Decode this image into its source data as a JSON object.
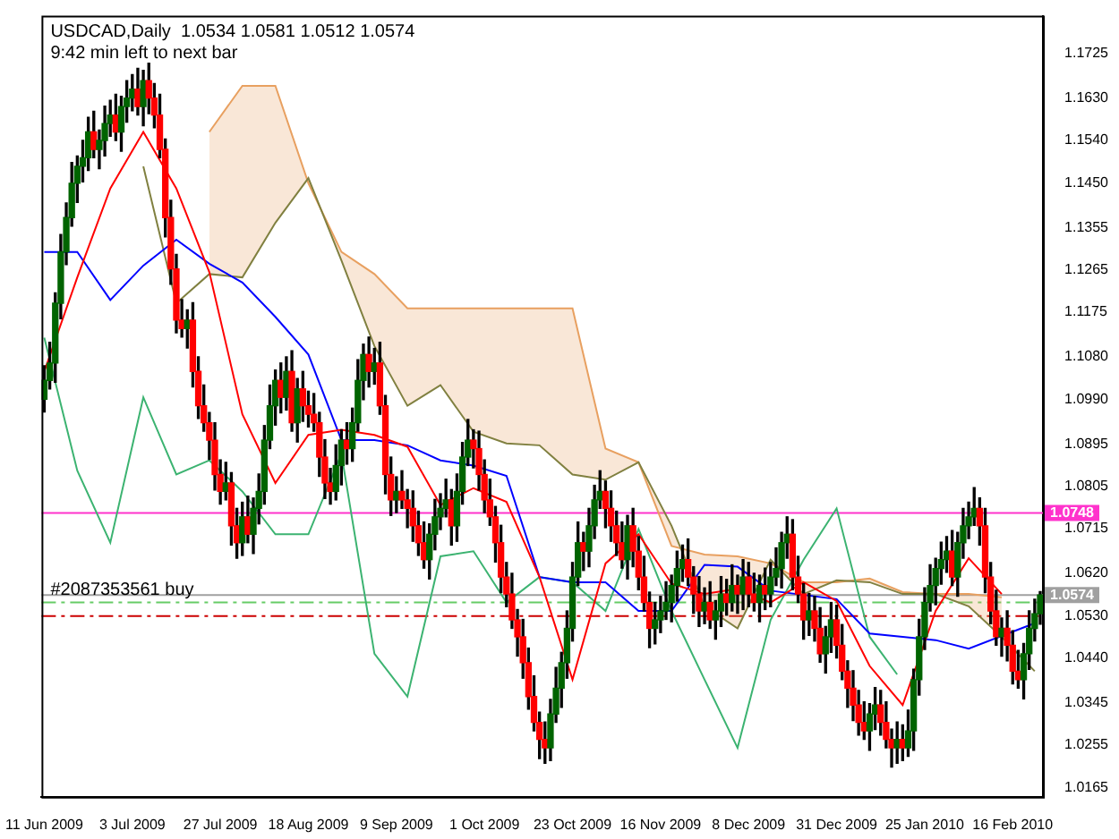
{
  "chart_data": {
    "type": "candlestick",
    "title": "USDCAD,Daily  1.0534 1.0581 1.0512 1.0574",
    "subtitle": "9:42 min left to next bar",
    "categories": [
      "11 Jun 2009",
      null,
      null,
      null,
      null,
      null,
      null,
      null,
      null,
      null,
      null,
      null,
      null,
      null,
      null,
      null,
      "3 Jul 2009",
      null,
      null,
      null,
      null,
      null,
      null,
      null,
      null,
      null,
      null,
      null,
      null,
      null,
      null,
      null,
      "27 Jul 2009",
      null,
      null,
      null,
      null,
      null,
      null,
      null,
      null,
      null,
      null,
      null,
      null,
      null,
      null,
      null,
      "18 Aug 2009",
      null,
      null,
      null,
      null,
      null,
      null,
      null,
      null,
      null,
      null,
      null,
      null,
      null,
      null,
      null,
      "9 Sep 2009",
      null,
      null,
      null,
      null,
      null,
      null,
      null,
      null,
      null,
      null,
      null,
      null,
      null,
      null,
      null,
      "1 Oct 2009",
      null,
      null,
      null,
      null,
      null,
      null,
      null,
      null,
      null,
      null,
      null,
      null,
      null,
      null,
      null,
      "23 Oct 2009",
      null,
      null,
      null,
      null,
      null,
      null,
      null,
      null,
      null,
      null,
      null,
      null,
      null,
      null,
      null,
      "16 Nov 2009",
      null,
      null,
      null,
      null,
      null,
      null,
      null,
      null,
      null,
      null,
      null,
      null,
      null,
      null,
      null,
      "8 Dec 2009",
      null,
      null,
      null,
      null,
      null,
      null,
      null,
      null,
      null,
      null,
      null,
      null,
      null,
      null,
      null,
      "31 Dec 2009",
      null,
      null,
      null,
      null,
      null,
      null,
      null,
      null,
      null,
      null,
      null,
      null,
      null,
      null,
      null,
      "25 Jan 2010",
      null,
      null,
      null,
      null,
      null,
      null,
      null,
      null,
      null,
      null,
      null,
      null,
      null,
      null,
      null,
      "16 Feb 2010",
      null,
      null,
      null,
      null,
      null
    ],
    "ohlc": [
      [
        1.099,
        1.1061,
        1.0963,
        1.103
      ],
      [
        1.103,
        1.1111,
        1.1012,
        1.1067
      ],
      [
        1.1067,
        1.1216,
        1.1026,
        1.1194
      ],
      [
        1.1194,
        1.134,
        1.1161,
        1.1303
      ],
      [
        1.1303,
        1.1407,
        1.1276,
        1.1376
      ],
      [
        1.1376,
        1.1493,
        1.1358,
        1.1449
      ],
      [
        1.1449,
        1.1507,
        1.1408,
        1.1485
      ],
      [
        1.1485,
        1.154,
        1.1452,
        1.1503
      ],
      [
        1.1503,
        1.1589,
        1.1476,
        1.1558
      ],
      [
        1.1558,
        1.1602,
        1.1503,
        1.1521
      ],
      [
        1.1521,
        1.1562,
        1.148,
        1.154
      ],
      [
        1.154,
        1.1613,
        1.1507,
        1.1576
      ],
      [
        1.1576,
        1.1625,
        1.1549,
        1.1594
      ],
      [
        1.1594,
        1.1638,
        1.154,
        1.1558
      ],
      [
        1.1558,
        1.1634,
        1.1517,
        1.1612
      ],
      [
        1.1612,
        1.1667,
        1.1579,
        1.163
      ],
      [
        1.163,
        1.168,
        1.1603,
        1.1649
      ],
      [
        1.1649,
        1.1693,
        1.1594,
        1.1612
      ],
      [
        1.1612,
        1.1689,
        1.1571,
        1.1667
      ],
      [
        1.1667,
        1.1704,
        1.1597,
        1.163
      ],
      [
        1.163,
        1.1661,
        1.1567,
        1.1594
      ],
      [
        1.1594,
        1.1638,
        1.1503,
        1.1521
      ],
      [
        1.1521,
        1.1543,
        1.1335,
        1.1376
      ],
      [
        1.1376,
        1.1413,
        1.1234,
        1.1267
      ],
      [
        1.1267,
        1.1298,
        1.1131,
        1.1158
      ],
      [
        1.1158,
        1.1202,
        1.1122,
        1.114
      ],
      [
        1.114,
        1.118,
        1.1099,
        1.1158
      ],
      [
        1.1158,
        1.1195,
        1.1016,
        1.1049
      ],
      [
        1.1049,
        1.108,
        1.0949,
        1.0976
      ],
      [
        1.0976,
        1.102,
        1.0922,
        1.094
      ],
      [
        1.094,
        1.0962,
        1.0862,
        1.0903
      ],
      [
        1.0903,
        1.094,
        1.0797,
        1.083
      ],
      [
        1.083,
        1.0861,
        1.0767,
        1.0794
      ],
      [
        1.0794,
        1.0856,
        1.0776,
        1.0812
      ],
      [
        1.0812,
        1.0834,
        1.068,
        1.0721
      ],
      [
        1.0721,
        1.0758,
        1.0652,
        1.0685
      ],
      [
        1.0685,
        1.0771,
        1.0658,
        1.074
      ],
      [
        1.074,
        1.0784,
        1.0685,
        1.0703
      ],
      [
        1.0703,
        1.078,
        1.0662,
        1.0758
      ],
      [
        1.0758,
        1.0831,
        1.0725,
        1.0794
      ],
      [
        1.0794,
        1.0934,
        1.0767,
        1.0903
      ],
      [
        1.0903,
        1.102,
        1.0885,
        1.0976
      ],
      [
        1.0976,
        1.1052,
        1.0935,
        1.103
      ],
      [
        1.103,
        1.1067,
        1.0961,
        1.0994
      ],
      [
        1.0994,
        1.108,
        1.0967,
        1.1049
      ],
      [
        1.1049,
        1.1093,
        1.0922,
        1.094
      ],
      [
        1.094,
        1.1034,
        1.0899,
        1.1012
      ],
      [
        1.1012,
        1.1049,
        1.0943,
        1.0976
      ],
      [
        1.0976,
        1.1007,
        1.0931,
        1.0958
      ],
      [
        1.0958,
        1.1002,
        1.0922,
        1.094
      ],
      [
        1.094,
        1.0962,
        1.0826,
        1.0867
      ],
      [
        1.0867,
        1.0904,
        1.0779,
        1.0812
      ],
      [
        1.0812,
        1.0843,
        1.0767,
        1.0794
      ],
      [
        1.0794,
        1.0893,
        1.0776,
        1.0849
      ],
      [
        1.0849,
        1.0925,
        1.0808,
        1.0903
      ],
      [
        1.0903,
        1.094,
        1.0852,
        1.0885
      ],
      [
        1.0885,
        1.0971,
        1.0858,
        1.094
      ],
      [
        1.094,
        1.1074,
        1.0922,
        1.103
      ],
      [
        1.103,
        1.1107,
        1.0989,
        1.1085
      ],
      [
        1.1085,
        1.1122,
        1.1016,
        1.1049
      ],
      [
        1.1049,
        1.1098,
        1.1022,
        1.1067
      ],
      [
        1.1067,
        1.1111,
        1.0958,
        1.0976
      ],
      [
        1.0976,
        1.0998,
        1.0789,
        1.083
      ],
      [
        1.083,
        1.0867,
        1.0743,
        1.0776
      ],
      [
        1.0776,
        1.0825,
        1.0749,
        1.0794
      ],
      [
        1.0794,
        1.0838,
        1.0758,
        1.0776
      ],
      [
        1.0776,
        1.0798,
        1.0717,
        1.0758
      ],
      [
        1.0758,
        1.0795,
        1.0688,
        1.0721
      ],
      [
        1.0721,
        1.0752,
        1.0658,
        1.0685
      ],
      [
        1.0685,
        1.0729,
        1.0631,
        1.0649
      ],
      [
        1.0649,
        1.0725,
        1.0608,
        1.0703
      ],
      [
        1.0703,
        1.0777,
        1.067,
        1.074
      ],
      [
        1.074,
        1.0789,
        1.0713,
        1.0758
      ],
      [
        1.0758,
        1.082,
        1.074,
        1.0776
      ],
      [
        1.0776,
        1.0798,
        1.068,
        1.0721
      ],
      [
        1.0721,
        1.0831,
        1.0688,
        1.0794
      ],
      [
        1.0794,
        1.0898,
        1.0767,
        1.0867
      ],
      [
        1.0867,
        1.0947,
        1.0849,
        1.0903
      ],
      [
        1.0903,
        1.0925,
        1.0844,
        1.0885
      ],
      [
        1.0885,
        1.0922,
        1.0797,
        1.083
      ],
      [
        1.083,
        1.0861,
        1.0749,
        1.0776
      ],
      [
        1.0776,
        1.082,
        1.0722,
        1.074
      ],
      [
        1.074,
        1.0762,
        1.0644,
        1.0685
      ],
      [
        1.0685,
        1.0722,
        1.0579,
        1.0612
      ],
      [
        1.0612,
        1.0643,
        1.0549,
        1.0576
      ],
      [
        1.0576,
        1.062,
        1.0503,
        1.0521
      ],
      [
        1.0521,
        1.0543,
        1.0444,
        1.0485
      ],
      [
        1.0485,
        1.0522,
        1.0397,
        1.043
      ],
      [
        1.043,
        1.0461,
        1.0331,
        1.0358
      ],
      [
        1.0358,
        1.0402,
        1.0285,
        1.0303
      ],
      [
        1.0303,
        1.0325,
        1.0226,
        1.0267
      ],
      [
        1.0267,
        1.0304,
        1.0216,
        1.0249
      ],
      [
        1.0249,
        1.0352,
        1.0222,
        1.0321
      ],
      [
        1.0321,
        1.042,
        1.0303,
        1.0376
      ],
      [
        1.0376,
        1.0452,
        1.0335,
        1.043
      ],
      [
        1.043,
        1.054,
        1.0397,
        1.0503
      ],
      [
        1.0503,
        1.0643,
        1.0476,
        1.0612
      ],
      [
        1.0612,
        1.0729,
        1.0594,
        1.0685
      ],
      [
        1.0685,
        1.0707,
        1.0626,
        1.0667
      ],
      [
        1.0667,
        1.0758,
        1.0634,
        1.0721
      ],
      [
        1.0721,
        1.0807,
        1.0694,
        1.0776
      ],
      [
        1.0776,
        1.0838,
        1.0758,
        1.0794
      ],
      [
        1.0794,
        1.0816,
        1.0717,
        1.0758
      ],
      [
        1.0758,
        1.0795,
        1.0688,
        1.0721
      ],
      [
        1.0721,
        1.0752,
        1.0658,
        1.0685
      ],
      [
        1.0685,
        1.0729,
        1.0631,
        1.0649
      ],
      [
        1.0649,
        1.0743,
        1.0608,
        1.0721
      ],
      [
        1.0721,
        1.0758,
        1.0634,
        1.0667
      ],
      [
        1.0667,
        1.0698,
        1.0585,
        1.0612
      ],
      [
        1.0612,
        1.0656,
        1.054,
        1.0558
      ],
      [
        1.0558,
        1.058,
        1.0462,
        1.0503
      ],
      [
        1.0503,
        1.0558,
        1.047,
        1.0521
      ],
      [
        1.0521,
        1.0571,
        1.0494,
        1.054
      ],
      [
        1.054,
        1.0602,
        1.0522,
        1.0558
      ],
      [
        1.0558,
        1.0616,
        1.0517,
        1.0594
      ],
      [
        1.0594,
        1.0667,
        1.0561,
        1.063
      ],
      [
        1.063,
        1.068,
        1.0603,
        1.0649
      ],
      [
        1.0649,
        1.0693,
        1.0594,
        1.0612
      ],
      [
        1.0612,
        1.0634,
        1.0535,
        1.0576
      ],
      [
        1.0576,
        1.0613,
        1.0507,
        1.054
      ],
      [
        1.054,
        1.0589,
        1.0513,
        1.0558
      ],
      [
        1.0558,
        1.0602,
        1.0503,
        1.0521
      ],
      [
        1.0521,
        1.0562,
        1.048,
        1.054
      ],
      [
        1.054,
        1.0613,
        1.0507,
        1.0576
      ],
      [
        1.0576,
        1.0607,
        1.0531,
        1.0558
      ],
      [
        1.0558,
        1.0638,
        1.054,
        1.0594
      ],
      [
        1.0594,
        1.0616,
        1.0535,
        1.0576
      ],
      [
        1.0576,
        1.0649,
        1.0543,
        1.0612
      ],
      [
        1.0612,
        1.0643,
        1.0549,
        1.0576
      ],
      [
        1.0576,
        1.062,
        1.054,
        1.0558
      ],
      [
        1.0558,
        1.0616,
        1.0517,
        1.0594
      ],
      [
        1.0594,
        1.0631,
        1.0543,
        1.0576
      ],
      [
        1.0576,
        1.0643,
        1.0549,
        1.0612
      ],
      [
        1.0612,
        1.0674,
        1.0594,
        1.063
      ],
      [
        1.063,
        1.0707,
        1.0589,
        1.0685
      ],
      [
        1.0685,
        1.074,
        1.0652,
        1.0703
      ],
      [
        1.0703,
        1.0734,
        1.0585,
        1.0612
      ],
      [
        1.0612,
        1.0656,
        1.0558,
        1.0576
      ],
      [
        1.0576,
        1.0598,
        1.048,
        1.0521
      ],
      [
        1.0521,
        1.0577,
        1.0488,
        1.054
      ],
      [
        1.054,
        1.0571,
        1.0476,
        1.0503
      ],
      [
        1.0503,
        1.0547,
        1.0431,
        1.0449
      ],
      [
        1.0449,
        1.0507,
        1.0408,
        1.0485
      ],
      [
        1.0485,
        1.0558,
        1.0452,
        1.0521
      ],
      [
        1.0521,
        1.0552,
        1.044,
        1.0467
      ],
      [
        1.0467,
        1.0511,
        1.0394,
        1.0412
      ],
      [
        1.0412,
        1.0434,
        1.0335,
        1.0376
      ],
      [
        1.0376,
        1.0413,
        1.0307,
        1.034
      ],
      [
        1.034,
        1.0371,
        1.0276,
        1.0303
      ],
      [
        1.0303,
        1.0347,
        1.0267,
        1.0285
      ],
      [
        1.0285,
        1.0343,
        1.0244,
        1.0321
      ],
      [
        1.0321,
        1.0377,
        1.0288,
        1.034
      ],
      [
        1.034,
        1.0371,
        1.0276,
        1.0303
      ],
      [
        1.0303,
        1.0347,
        1.0249,
        1.0267
      ],
      [
        1.0267,
        1.0289,
        1.0208,
        1.0249
      ],
      [
        1.0249,
        1.0304,
        1.0216,
        1.0267
      ],
      [
        1.0267,
        1.0298,
        1.0222,
        1.0249
      ],
      [
        1.0249,
        1.0329,
        1.0231,
        1.0285
      ],
      [
        1.0285,
        1.0416,
        1.0244,
        1.0394
      ],
      [
        1.0394,
        1.0522,
        1.0361,
        1.0485
      ],
      [
        1.0485,
        1.0589,
        1.0458,
        1.0558
      ],
      [
        1.0558,
        1.0638,
        1.054,
        1.0594
      ],
      [
        1.0594,
        1.0652,
        1.0553,
        1.063
      ],
      [
        1.063,
        1.0686,
        1.0597,
        1.0649
      ],
      [
        1.0649,
        1.0698,
        1.0622,
        1.0667
      ],
      [
        1.0667,
        1.0711,
        1.0594,
        1.0612
      ],
      [
        1.0612,
        1.0707,
        1.0571,
        1.0685
      ],
      [
        1.0685,
        1.0758,
        1.0652,
        1.0721
      ],
      [
        1.0721,
        1.0771,
        1.0694,
        1.074
      ],
      [
        1.074,
        1.0802,
        1.0722,
        1.0758
      ],
      [
        1.0758,
        1.078,
        1.068,
        1.0721
      ],
      [
        1.0721,
        1.0758,
        1.0579,
        1.0612
      ],
      [
        1.0612,
        1.0643,
        1.0513,
        1.054
      ],
      [
        1.054,
        1.0584,
        1.0467,
        1.0485
      ],
      [
        1.0485,
        1.0525,
        1.0444,
        1.0503
      ],
      [
        1.0503,
        1.054,
        1.0434,
        1.0467
      ],
      [
        1.0467,
        1.0498,
        1.0385,
        1.0412
      ],
      [
        1.0412,
        1.0456,
        1.0376,
        1.0394
      ],
      [
        1.0394,
        1.0471,
        1.0353,
        1.0449
      ],
      [
        1.0449,
        1.054,
        1.0416,
        1.0503
      ],
      [
        1.0503,
        1.0565,
        1.0476,
        1.0534
      ],
      [
        1.0534,
        1.0581,
        1.0512,
        1.0574
      ]
    ],
    "series": [
      {
        "type": "line",
        "color": "#ff0000",
        "values": [
          1.1049,
          null,
          null,
          null,
          null,
          null,
          1.1249,
          null,
          null,
          null,
          null,
          null,
          1.1438,
          null,
          null,
          null,
          null,
          null,
          1.1558,
          null,
          null,
          null,
          null,
          null,
          1.1438,
          null,
          null,
          null,
          null,
          null,
          1.126,
          null,
          null,
          null,
          null,
          null,
          1.0958,
          null,
          null,
          null,
          null,
          null,
          1.0812,
          null,
          null,
          null,
          null,
          null,
          1.0914,
          null,
          null,
          null,
          null,
          null,
          1.0925,
          null,
          null,
          null,
          null,
          null,
          1.0914,
          null,
          null,
          null,
          null,
          null,
          1.0889,
          null,
          null,
          null,
          null,
          null,
          1.0765,
          null,
          null,
          null,
          null,
          null,
          1.0801,
          null,
          null,
          null,
          null,
          null,
          1.0772,
          null,
          null,
          null,
          null,
          null,
          1.0612,
          null,
          null,
          null,
          null,
          null,
          1.0394,
          null,
          null,
          null,
          null,
          null,
          1.0641,
          null,
          null,
          null,
          null,
          null,
          1.0703,
          null,
          null,
          null,
          null,
          null,
          1.0598,
          null,
          null,
          null,
          null,
          null,
          1.0576,
          null,
          null,
          null,
          null,
          null,
          1.0587,
          null,
          null,
          null,
          null,
          null,
          1.0558,
          null,
          null,
          null,
          null,
          null,
          1.0601,
          null,
          null,
          null,
          null,
          null,
          1.0561,
          null,
          null,
          null,
          null,
          null,
          1.0423,
          null,
          null,
          null,
          null,
          null,
          1.034,
          null,
          null,
          null,
          null,
          null,
          1.054,
          null,
          null,
          null,
          null,
          null,
          1.0652,
          null,
          null,
          null,
          null,
          null,
          1.0576,
          null,
          null,
          null,
          null,
          null,
          null,
          null
        ]
      },
      {
        "type": "line",
        "color": "#0000ff",
        "values": [
          1.1303,
          null,
          null,
          null,
          null,
          null,
          1.1303,
          null,
          null,
          null,
          null,
          null,
          1.1201,
          null,
          null,
          null,
          null,
          null,
          1.1274,
          null,
          null,
          null,
          null,
          null,
          1.1329,
          null,
          null,
          null,
          null,
          null,
          1.1278,
          null,
          null,
          null,
          null,
          null,
          1.1238,
          null,
          null,
          null,
          null,
          null,
          1.1165,
          null,
          null,
          null,
          null,
          null,
          1.1085,
          null,
          null,
          null,
          null,
          null,
          1.0903,
          null,
          null,
          null,
          null,
          null,
          1.0903,
          null,
          null,
          null,
          null,
          null,
          1.0892,
          null,
          null,
          null,
          null,
          null,
          1.086,
          null,
          null,
          null,
          null,
          null,
          1.0849,
          null,
          null,
          null,
          null,
          null,
          1.0827,
          null,
          null,
          null,
          null,
          null,
          1.0612,
          null,
          null,
          null,
          null,
          null,
          1.0601,
          null,
          null,
          null,
          null,
          null,
          1.0601,
          null,
          null,
          null,
          null,
          null,
          1.054,
          null,
          null,
          null,
          null,
          null,
          1.054,
          null,
          null,
          null,
          null,
          null,
          1.0638,
          null,
          null,
          null,
          null,
          null,
          1.0634,
          null,
          null,
          null,
          null,
          null,
          1.0583,
          null,
          null,
          null,
          null,
          null,
          null,
          null,
          null,
          null,
          null,
          null,
          1.0565,
          null,
          null,
          null,
          null,
          null,
          1.0492,
          null,
          null,
          null,
          null,
          null,
          1.0485,
          null,
          null,
          null,
          null,
          null,
          1.0478,
          null,
          null,
          null,
          null,
          null,
          1.046,
          null,
          null,
          null,
          null,
          null,
          null,
          null,
          null,
          null,
          null,
          null,
          1.0514,
          null
        ]
      },
      {
        "type": "line",
        "color": "#3cb371",
        "values": [
          1.1121,
          null,
          null,
          null,
          null,
          null,
          1.0838,
          null,
          null,
          null,
          null,
          null,
          1.0685,
          null,
          null,
          null,
          null,
          null,
          1.0994,
          null,
          null,
          null,
          null,
          null,
          1.083,
          null,
          null,
          null,
          null,
          null,
          1.086,
          null,
          null,
          null,
          null,
          null,
          1.0794,
          null,
          null,
          null,
          null,
          null,
          1.0703,
          null,
          null,
          null,
          null,
          null,
          1.0703,
          null,
          null,
          null,
          null,
          null,
          1.0874,
          null,
          null,
          null,
          null,
          null,
          1.0449,
          null,
          null,
          null,
          null,
          null,
          1.0358,
          null,
          null,
          null,
          null,
          null,
          1.0656,
          null,
          null,
          null,
          null,
          null,
          1.0667,
          null,
          null,
          null,
          null,
          null,
          1.0558,
          null,
          null,
          null,
          null,
          null,
          1.0612,
          null,
          null,
          null,
          null,
          null,
          1.0601,
          null,
          null,
          null,
          null,
          null,
          1.054,
          null,
          null,
          null,
          null,
          null,
          1.0714,
          null,
          null,
          null,
          null,
          null,
          1.054,
          null,
          null,
          null,
          null,
          null,
          1.0394,
          null,
          null,
          null,
          null,
          null,
          1.0249,
          null,
          null,
          null,
          null,
          null,
          1.0521,
          null,
          null,
          null,
          null,
          null,
          1.0649,
          null,
          null,
          null,
          null,
          null,
          1.0758,
          null,
          null,
          null,
          null,
          null,
          1.0485,
          null,
          null,
          null,
          null,
          1.0405,
          null,
          null,
          null,
          null,
          null,
          null,
          null,
          null,
          null,
          null,
          null,
          null,
          null,
          null,
          null,
          null,
          null,
          null,
          null,
          null,
          null,
          null,
          null,
          null,
          null,
          null
        ]
      },
      {
        "type": "area",
        "color": "#e8a060",
        "values": [
          null,
          null,
          null,
          null,
          null,
          null,
          null,
          null,
          null,
          null,
          null,
          null,
          null,
          null,
          null,
          null,
          null,
          null,
          null,
          null,
          null,
          null,
          null,
          null,
          null,
          null,
          null,
          null,
          null,
          null,
          1.1558,
          null,
          null,
          null,
          null,
          null,
          1.1656,
          null,
          null,
          null,
          null,
          null,
          1.1656,
          null,
          null,
          null,
          null,
          null,
          1.1449,
          null,
          null,
          null,
          null,
          null,
          1.1303,
          null,
          null,
          null,
          null,
          null,
          1.1256,
          null,
          null,
          null,
          null,
          null,
          1.1183,
          null,
          null,
          null,
          null,
          null,
          1.1183,
          null,
          null,
          null,
          null,
          null,
          1.1183,
          null,
          null,
          null,
          null,
          null,
          1.1183,
          null,
          null,
          null,
          null,
          null,
          1.1183,
          null,
          null,
          null,
          null,
          null,
          1.1183,
          null,
          null,
          null,
          null,
          null,
          1.0885,
          null,
          null,
          null,
          null,
          null,
          1.0856,
          null,
          null,
          null,
          null,
          null,
          1.0678,
          null,
          null,
          null,
          null,
          null,
          1.066,
          null,
          null,
          null,
          null,
          null,
          1.0656,
          null,
          null,
          null,
          null,
          null,
          1.0641,
          null,
          null,
          null,
          null,
          null,
          1.0601,
          null,
          null,
          null,
          null,
          null,
          1.0601,
          null,
          null,
          null,
          null,
          null,
          1.0609,
          null,
          null,
          null,
          null,
          null,
          1.058,
          null,
          null,
          null,
          null,
          null,
          1.0576,
          null,
          null,
          null,
          null,
          null,
          1.0576,
          null,
          null,
          null,
          null,
          null,
          1.0569,
          null,
          null,
          null,
          null,
          null,
          null,
          null
        ]
      },
      {
        "type": "line",
        "color": "#808040",
        "values": [
          null,
          null,
          null,
          null,
          null,
          null,
          null,
          null,
          null,
          null,
          null,
          null,
          null,
          null,
          null,
          null,
          null,
          null,
          1.1485,
          null,
          null,
          null,
          null,
          null,
          1.1194,
          null,
          null,
          null,
          null,
          null,
          1.1256,
          null,
          null,
          null,
          null,
          null,
          1.1249,
          null,
          null,
          null,
          null,
          null,
          1.1365,
          null,
          null,
          null,
          null,
          null,
          1.146,
          null,
          null,
          null,
          null,
          null,
          1.1285,
          null,
          null,
          null,
          null,
          null,
          1.1103,
          null,
          null,
          null,
          null,
          null,
          1.0976,
          null,
          null,
          null,
          null,
          null,
          1.102,
          null,
          null,
          null,
          null,
          null,
          1.0921,
          null,
          null,
          null,
          null,
          null,
          1.0896,
          null,
          null,
          null,
          null,
          null,
          1.0892,
          null,
          null,
          null,
          null,
          null,
          1.083,
          null,
          null,
          null,
          null,
          null,
          1.0819,
          null,
          null,
          null,
          null,
          null,
          1.0856,
          null,
          null,
          null,
          null,
          null,
          1.0721,
          null,
          null,
          null,
          null,
          null,
          1.055,
          null,
          null,
          null,
          null,
          null,
          1.0503,
          null,
          null,
          null,
          null,
          null,
          1.0649,
          null,
          null,
          null,
          null,
          null,
          1.0576,
          null,
          null,
          null,
          null,
          null,
          1.0605,
          null,
          null,
          null,
          null,
          null,
          1.0601,
          null,
          null,
          null,
          null,
          null,
          1.0576,
          null,
          null,
          null,
          null,
          null,
          1.0576,
          null,
          null,
          null,
          null,
          null,
          1.055,
          null,
          null,
          null,
          null,
          null,
          1.0485,
          null,
          null,
          null,
          null,
          null,
          1.0412,
          null
        ]
      }
    ],
    "ylim": [
      1.0145,
      1.1805
    ],
    "yticks": [
      {
        "value": 1.0165,
        "label": "1.0165"
      },
      {
        "value": 1.0255,
        "label": "1.0255"
      },
      {
        "value": 1.0345,
        "label": "1.0345"
      },
      {
        "value": 1.044,
        "label": "1.0440"
      },
      {
        "value": 1.053,
        "label": "1.0530"
      },
      {
        "value": 1.062,
        "label": "1.0620"
      },
      {
        "value": 1.0715,
        "label": "1.0715"
      },
      {
        "value": 1.0805,
        "label": "1.0805"
      },
      {
        "value": 1.0895,
        "label": "1.0895"
      },
      {
        "value": 1.099,
        "label": "1.0990"
      },
      {
        "value": 1.108,
        "label": "1.1080"
      },
      {
        "value": 1.1175,
        "label": "1.1175"
      },
      {
        "value": 1.1265,
        "label": "1.1265"
      },
      {
        "value": 1.1355,
        "label": "1.1355"
      },
      {
        "value": 1.145,
        "label": "1.1450"
      },
      {
        "value": 1.154,
        "label": "1.1540"
      },
      {
        "value": 1.163,
        "label": "1.1630"
      },
      {
        "value": 1.1725,
        "label": "1.1725"
      }
    ],
    "ref_lines": [
      {
        "axis": "y",
        "value": 1.0748,
        "label": "1.0748",
        "color": "#ff33cc",
        "line_style": "solid"
      },
      {
        "axis": "y",
        "value": 1.0574,
        "label": "1.0574",
        "color": "#a0a0a0",
        "line_style": "solid"
      },
      {
        "axis": "y",
        "value": 1.0558,
        "label": "#2087353561 buy",
        "color": "#66cc66",
        "line_style": "dashed"
      },
      {
        "axis": "y",
        "value": 1.0529,
        "color": "#cc0000",
        "line_style": "dashed"
      }
    ],
    "marker": "none",
    "legend": false
  }
}
